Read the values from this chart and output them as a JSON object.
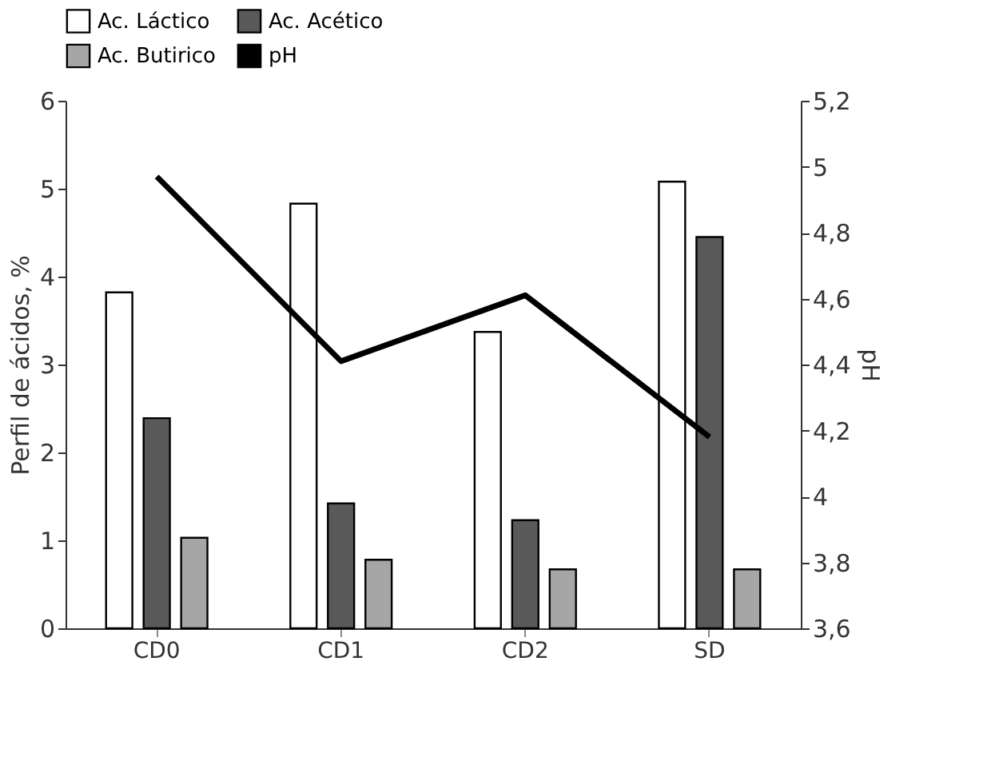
{
  "chart_data": {
    "type": "bar",
    "ylabel": "Perfil de ácidos, %",
    "y2label": "pH",
    "categories": [
      "CD0",
      "CD1",
      "CD2",
      "SD"
    ],
    "series": [
      {
        "name": "Ac. Láctico",
        "color": "#ffffff",
        "values": [
          3.82,
          4.83,
          3.37,
          5.08
        ]
      },
      {
        "name": "Ac. Acético",
        "color": "#595959",
        "values": [
          2.39,
          1.42,
          1.23,
          4.45
        ]
      },
      {
        "name": "Ac. Butirico",
        "color": "#a6a6a6",
        "values": [
          1.03,
          0.78,
          0.67,
          0.67
        ]
      },
      {
        "name": "pH",
        "type": "line",
        "axis": "y2",
        "color": "#000000",
        "values": [
          4.97,
          4.41,
          4.61,
          4.18
        ]
      }
    ],
    "ylim": [
      0,
      6
    ],
    "yticks": [
      0,
      1,
      2,
      3,
      4,
      5,
      6
    ],
    "y2lim": [
      3.6,
      5.2
    ],
    "y2ticks": [
      {
        "value": 3.6,
        "label": "3,6"
      },
      {
        "value": 3.8,
        "label": "3,8"
      },
      4,
      {
        "value": 4.2,
        "label": "4,2"
      },
      {
        "value": 4.4,
        "label": "4,4"
      },
      {
        "value": 4.6,
        "label": "4,6"
      },
      {
        "value": 4.8,
        "label": "4,8"
      },
      5,
      {
        "value": 5.2,
        "label": "5,2"
      }
    ],
    "grid": false,
    "legend": "top",
    "marker": "none",
    "line_style": "solid"
  }
}
